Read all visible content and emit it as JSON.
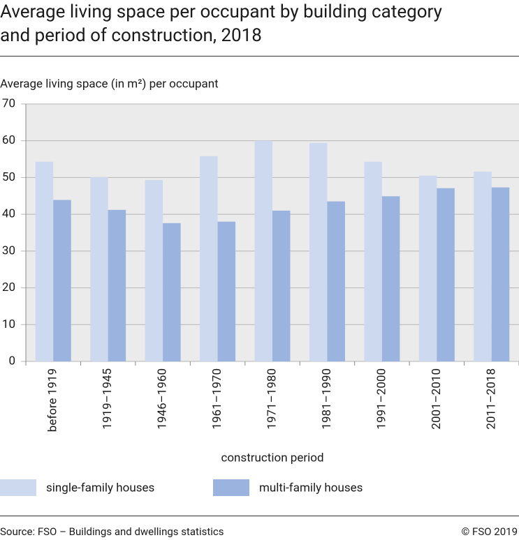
{
  "chart_data": {
    "type": "bar",
    "title": "Average living space per occupant by building category and period of construction, 2018",
    "y_label": "Average living space (in m²) per occupant",
    "x_label": "construction period",
    "categories": [
      "before 1919",
      "1919–1945",
      "1946–1960",
      "1961–1970",
      "1971–1980",
      "1981–1990",
      "1991–2000",
      "2001–2010",
      "2011–2018"
    ],
    "series": [
      {
        "name": "single-family houses",
        "color": "#ccd9ef",
        "values": [
          54.3,
          50.1,
          49.3,
          55.8,
          60.0,
          59.4,
          54.3,
          50.5,
          51.6
        ]
      },
      {
        "name": "multi-family houses",
        "color": "#9ab4df",
        "values": [
          43.9,
          41.2,
          37.6,
          38.0,
          41.0,
          43.5,
          44.9,
          47.1,
          47.3
        ]
      }
    ],
    "ylim": [
      0,
      70
    ],
    "yticks": [
      0,
      10,
      20,
      30,
      40,
      50,
      60,
      70
    ],
    "grid": true,
    "source": "Source: FSO – Buildings and dwellings statistics",
    "copyright": "© FSO 2019"
  }
}
